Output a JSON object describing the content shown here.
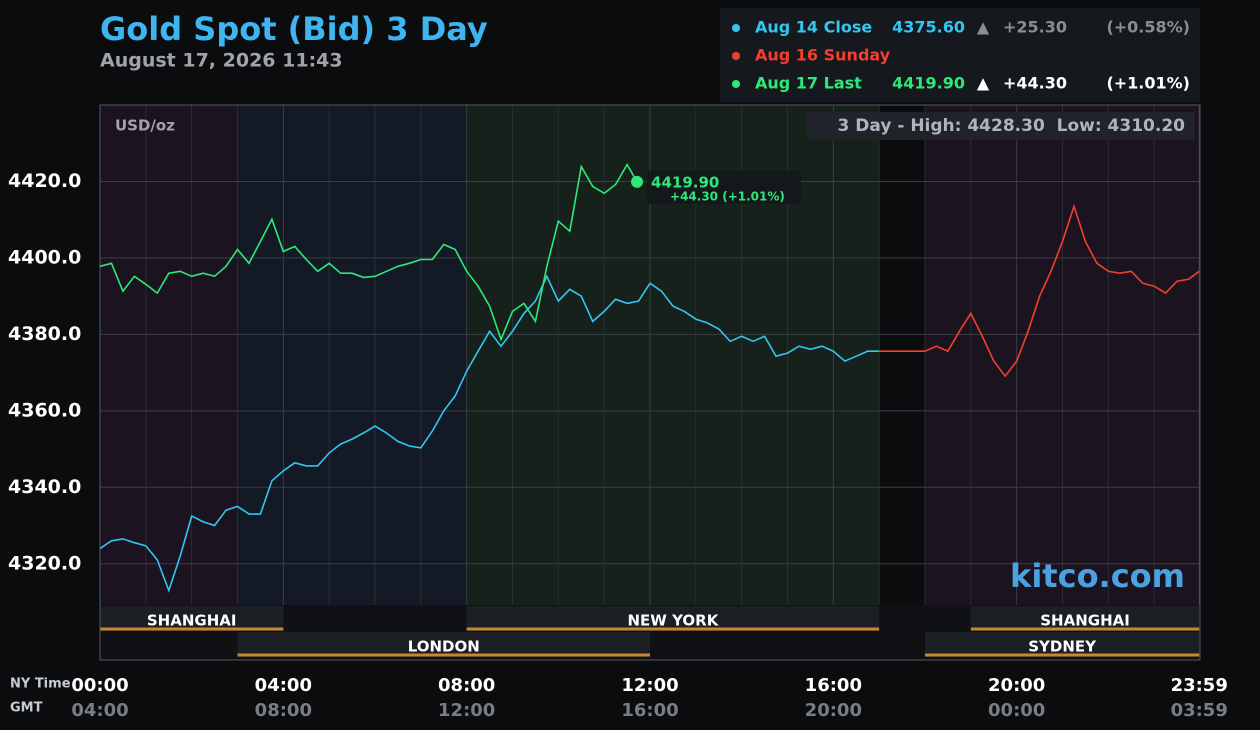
{
  "chart_data": {
    "type": "line",
    "title": "Gold Spot (Bid) 3 Day",
    "subtitle": "August 17, 2026 11:43",
    "y_unit": "USD/oz",
    "range_note": "3 Day - High: 4428.30  Low: 4310.20",
    "brand": "kitco.com",
    "x_row_labels": [
      "NY Time",
      "GMT"
    ],
    "xlim": [
      0,
      24
    ],
    "xticks": [
      {
        "value": 0,
        "label": "00:00"
      },
      {
        "value": 4,
        "label": "04:00"
      },
      {
        "value": 8,
        "label": "08:00"
      },
      {
        "value": 12,
        "label": "12:00"
      },
      {
        "value": 16,
        "label": "16:00"
      },
      {
        "value": 20,
        "label": "20:00"
      },
      {
        "value": 23.983,
        "label": "23:59"
      }
    ],
    "x2_labels": [
      "04:00",
      "08:00",
      "12:00",
      "16:00",
      "20:00",
      "00:00",
      "03:59"
    ],
    "minor_xticks": [
      1,
      2,
      3,
      5,
      6,
      7,
      9,
      10,
      11,
      13,
      14,
      15,
      17,
      18,
      19,
      21,
      22,
      23
    ],
    "ylim": [
      4310,
      4440
    ],
    "yticks": [
      {
        "value": 4320,
        "label": "4320.0"
      },
      {
        "value": 4340,
        "label": "4340.0"
      },
      {
        "value": 4360,
        "label": "4360.0"
      },
      {
        "value": 4380,
        "label": "4380.0"
      },
      {
        "value": 4400,
        "label": "4400.0"
      },
      {
        "value": 4420,
        "label": "4420.0"
      }
    ],
    "grid": true,
    "zones": [
      {
        "start": 0,
        "end": 3,
        "color": "#1b1420"
      },
      {
        "start": 3,
        "end": 8,
        "color": "#131925"
      },
      {
        "start": 8,
        "end": 17,
        "color": "#15211a"
      },
      {
        "start": 17,
        "end": 18,
        "color": "#0b0c0e"
      },
      {
        "start": 18,
        "end": 23.983,
        "color": "#1b1420"
      }
    ],
    "sessions": [
      {
        "name": "SHANGHAI",
        "start": 0,
        "end": 4,
        "row": 0
      },
      {
        "name": "LONDON",
        "start": 3,
        "end": 12,
        "row": 1
      },
      {
        "name": "NEW YORK",
        "start": 8,
        "end": 17,
        "row": 0
      },
      {
        "name": "SHANGHAI",
        "start": 19,
        "end": 23.983,
        "row": 0
      },
      {
        "name": "SYDNEY",
        "start": 18,
        "end": 23.983,
        "row": 1
      }
    ],
    "series": [
      {
        "name": "Aug 14 Close",
        "color": "#33c6f0",
        "last": "4375.60",
        "arrow": "▲",
        "change": "+25.30",
        "change_pct": "(+0.58%)",
        "change_color": "#8a8e94",
        "x": [
          0,
          0.25,
          0.5,
          0.75,
          1,
          1.25,
          1.5,
          1.75,
          2,
          2.25,
          2.5,
          2.75,
          3,
          3.25,
          3.5,
          3.75,
          4,
          4.25,
          4.5,
          4.75,
          5,
          5.25,
          5.5,
          5.75,
          6,
          6.25,
          6.5,
          6.75,
          7,
          7.25,
          7.5,
          7.75,
          8,
          8.25,
          8.5,
          8.75,
          9,
          9.25,
          9.5,
          9.75,
          10,
          10.25,
          10.5,
          10.75,
          11,
          11.25,
          11.5,
          11.75,
          12,
          12.25,
          12.5,
          12.75,
          13,
          13.25,
          13.5,
          13.75,
          14,
          14.25,
          14.5,
          14.75,
          15,
          15.25,
          15.5,
          15.75,
          16,
          16.25,
          16.5,
          16.75,
          17
        ],
        "values": [
          4324,
          4326,
          4326.5,
          4325.5,
          4324.7,
          4321,
          4313,
          4322,
          4332.5,
          4331,
          4330,
          4334,
          4335,
          4333,
          4333,
          4341.7,
          4344.3,
          4346.4,
          4345.6,
          4345.6,
          4349,
          4351.3,
          4352.6,
          4354.2,
          4356,
          4354.2,
          4352,
          4350.8,
          4350.3,
          4354.7,
          4360,
          4363.9,
          4370.4,
          4375.6,
          4380.8,
          4376.9,
          4380.8,
          4385.5,
          4388.7,
          4395.2,
          4388.7,
          4391.8,
          4390,
          4383.4,
          4386,
          4389.2,
          4388.1,
          4388.7,
          4393.4,
          4391.3,
          4387.4,
          4386,
          4384,
          4383,
          4381.4,
          4378.2,
          4379.5,
          4378.2,
          4379.5,
          4374.3,
          4375.1,
          4376.9,
          4376.1,
          4376.9,
          4375.6,
          4373,
          4374.3,
          4375.6,
          4375.6
        ]
      },
      {
        "name": "Aug 16 Sunday",
        "color": "#f0402f",
        "x": [
          17,
          18,
          18.25,
          18.5,
          18.75,
          19,
          19.25,
          19.5,
          19.75,
          20,
          20.25,
          20.5,
          20.75,
          21,
          21.25,
          21.5,
          21.75,
          22,
          22.25,
          22.5,
          22.75,
          23,
          23.25,
          23.5,
          23.75,
          23.983
        ],
        "values": [
          4375.6,
          4375.6,
          4376.9,
          4375.6,
          4380.8,
          4385.5,
          4379.5,
          4373,
          4369.1,
          4373,
          4380.8,
          4390,
          4396.5,
          4404.3,
          4413.5,
          4404.3,
          4398.6,
          4396.5,
          4396,
          4396.5,
          4393.4,
          4392.6,
          4390.8,
          4393.9,
          4394.4,
          4396.5
        ]
      },
      {
        "name": "Aug 17 Last",
        "color": "#2ee87a",
        "last": "4419.90",
        "arrow": "▲",
        "change": "+44.30",
        "change_pct": "(+1.01%)",
        "change_color": "#ffffff",
        "last_note": "+44.30 (+1.01%)",
        "x": [
          0,
          0.25,
          0.5,
          0.75,
          1,
          1.25,
          1.5,
          1.75,
          2,
          2.25,
          2.5,
          2.75,
          3,
          3.25,
          3.5,
          3.75,
          4,
          4.25,
          4.5,
          4.75,
          5,
          5.25,
          5.5,
          5.75,
          6,
          6.25,
          6.5,
          6.75,
          7,
          7.25,
          7.5,
          7.75,
          8,
          8.25,
          8.5,
          8.75,
          9,
          9.25,
          9.5,
          9.75,
          10,
          10.25,
          10.5,
          10.75,
          11,
          11.25,
          11.5,
          11.717
        ],
        "values": [
          4397.8,
          4398.6,
          4391.3,
          4395.2,
          4393.1,
          4390.8,
          4396,
          4396.5,
          4395.2,
          4396,
          4395.2,
          4397.8,
          4402.2,
          4398.6,
          4404.3,
          4410.1,
          4401.7,
          4403,
          4399.6,
          4396.5,
          4398.6,
          4396,
          4396,
          4394.9,
          4395.2,
          4396.5,
          4397.8,
          4398.6,
          4399.6,
          4399.6,
          4403.5,
          4402.2,
          4396.5,
          4392.6,
          4387.4,
          4378.7,
          4386,
          4388.1,
          4383.4,
          4397.8,
          4409.6,
          4407,
          4423.9,
          4418.7,
          4416.9,
          4419.2,
          4424.4,
          4419.9
        ]
      }
    ]
  }
}
